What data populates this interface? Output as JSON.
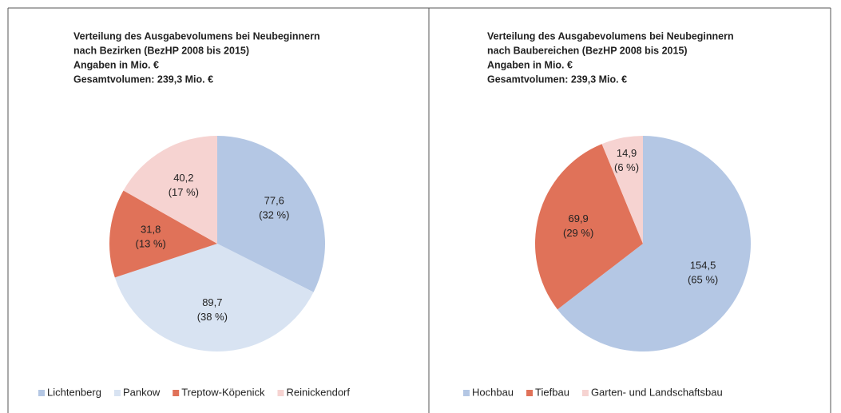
{
  "chart_data": [
    {
      "type": "pie",
      "title_lines": [
        "Verteilung des Ausgabevolumens bei Neubeginnern",
        "nach Bezirken (BezHP 2008 bis 2015)",
        "Angaben in Mio. €",
        "Gesamtvolumen: 239,3 Mio. €"
      ],
      "categories": [
        "Lichtenberg",
        "Pankow",
        "Treptow-Köpenick",
        "Reinickendorf"
      ],
      "values": [
        77.6,
        89.7,
        31.8,
        40.2
      ],
      "value_labels": [
        "77,6",
        "89,7",
        "31,8",
        "40,2"
      ],
      "percent_labels": [
        "(32 %)",
        "(38 %)",
        "(13 %)",
        "(17 %)"
      ],
      "colors": [
        "#b4c7e4",
        "#d8e3f2",
        "#e07259",
        "#f6d3d1"
      ],
      "legend": "bottom"
    },
    {
      "type": "pie",
      "title_lines": [
        "Verteilung des Ausgabevolumens bei Neubeginnern",
        "nach Baubereichen (BezHP 2008 bis 2015)",
        "Angaben in Mio. €",
        "Gesamtvolumen: 239,3 Mio. €"
      ],
      "categories": [
        "Hochbau",
        "Tiefbau",
        "Garten- und Landschaftsbau"
      ],
      "values": [
        154.5,
        69.9,
        14.9
      ],
      "value_labels": [
        "154,5",
        "69,9",
        "14,9"
      ],
      "percent_labels": [
        "(65 %)",
        "(29 %)",
        "(6 %)"
      ],
      "colors": [
        "#b4c7e4",
        "#e07259",
        "#f6d3d1"
      ],
      "legend": "bottom"
    }
  ]
}
